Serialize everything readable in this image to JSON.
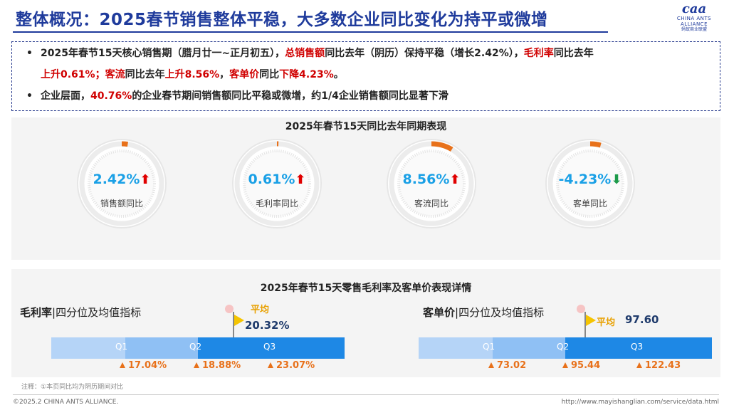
{
  "header": {
    "title": "整体概况：2025春节销售整体平稳，大多数企业同比变化为持平或微增",
    "logo_mark": "caa",
    "logo_en_1": "CHINA ANTS",
    "logo_en_2": "ALLIANCE",
    "logo_cn": "蚂蚁商业联盟"
  },
  "summary": {
    "bullet1_line1": [
      {
        "t": "2025年春节15天核心销售期（腊月廿一~正月初五），",
        "red": false
      },
      {
        "t": "总销售额",
        "red": true
      },
      {
        "t": "同比去年（阴历）保持平稳（增长2.42%），",
        "red": false
      },
      {
        "t": "毛利率",
        "red": true
      },
      {
        "t": "同比去年",
        "red": false
      }
    ],
    "bullet1_line2": [
      {
        "t": "上升0.61%；",
        "red": true
      },
      {
        "t": "客流",
        "red": true
      },
      {
        "t": "同比去年",
        "red": false
      },
      {
        "t": "上升8.56%",
        "red": true
      },
      {
        "t": "，",
        "red": false
      },
      {
        "t": "客单价",
        "red": true
      },
      {
        "t": "同比",
        "red": false
      },
      {
        "t": "下降4.23%",
        "red": true
      },
      {
        "t": "。",
        "red": false
      }
    ],
    "bullet2": [
      {
        "t": "企业层面，",
        "red": false
      },
      {
        "t": "40.76%",
        "red": true
      },
      {
        "t": "的企业春节期间销售额同比平稳或微增，约1/4企业销售额同比显著下滑",
        "red": false
      }
    ],
    "bullet_symbol": "•"
  },
  "yoy": {
    "title": "2025年春节15天同比去年同期表现",
    "gauges": [
      {
        "value": "2.42%",
        "label": "销售额同比",
        "dir": "up",
        "pct": 2.42
      },
      {
        "value": "0.61%",
        "label": "毛利率同比",
        "dir": "up",
        "pct": 0.61
      },
      {
        "value": "8.56%",
        "label": "客流同比",
        "dir": "up",
        "pct": 8.56
      },
      {
        "value": "-4.23%",
        "label": "客单同比",
        "dir": "down",
        "pct": 4.23
      }
    ],
    "arrow_up": "⬆",
    "arrow_down": "⬇"
  },
  "detail": {
    "title": "2025年春节15天零售毛利率及客单价表现详情",
    "left": {
      "title_bold": "毛利率",
      "title_rest": "|四分位及均值指标",
      "avg_label": "平均",
      "avg_value": "20.32%",
      "q_labels": [
        "Q1",
        "Q2",
        "Q3"
      ],
      "ticks": [
        "17.04%",
        "18.88%",
        "23.07%"
      ]
    },
    "right": {
      "title_bold": "客单价",
      "title_rest": "|四分位及均值指标",
      "avg_label": "平均",
      "avg_value": "97.60",
      "q_labels": [
        "Q1",
        "Q2",
        "Q3"
      ],
      "ticks": [
        "73.02",
        "95.44",
        "122.43"
      ]
    }
  },
  "note": "注释：①本页同比均为阴历期间对比",
  "footer": {
    "left": "©2025.2 CHINA ANTS ALLIANCE.",
    "right": "http://www.mayishanglian.com/service/data.html"
  },
  "colors": {
    "accent": "#1f3b9c",
    "red": "#d00000",
    "gauge_value": "#1aa0e6",
    "orange": "#e8711a",
    "q1": "#b5d4f7",
    "q2": "#7db4f2",
    "q3": "#1e88e5"
  }
}
